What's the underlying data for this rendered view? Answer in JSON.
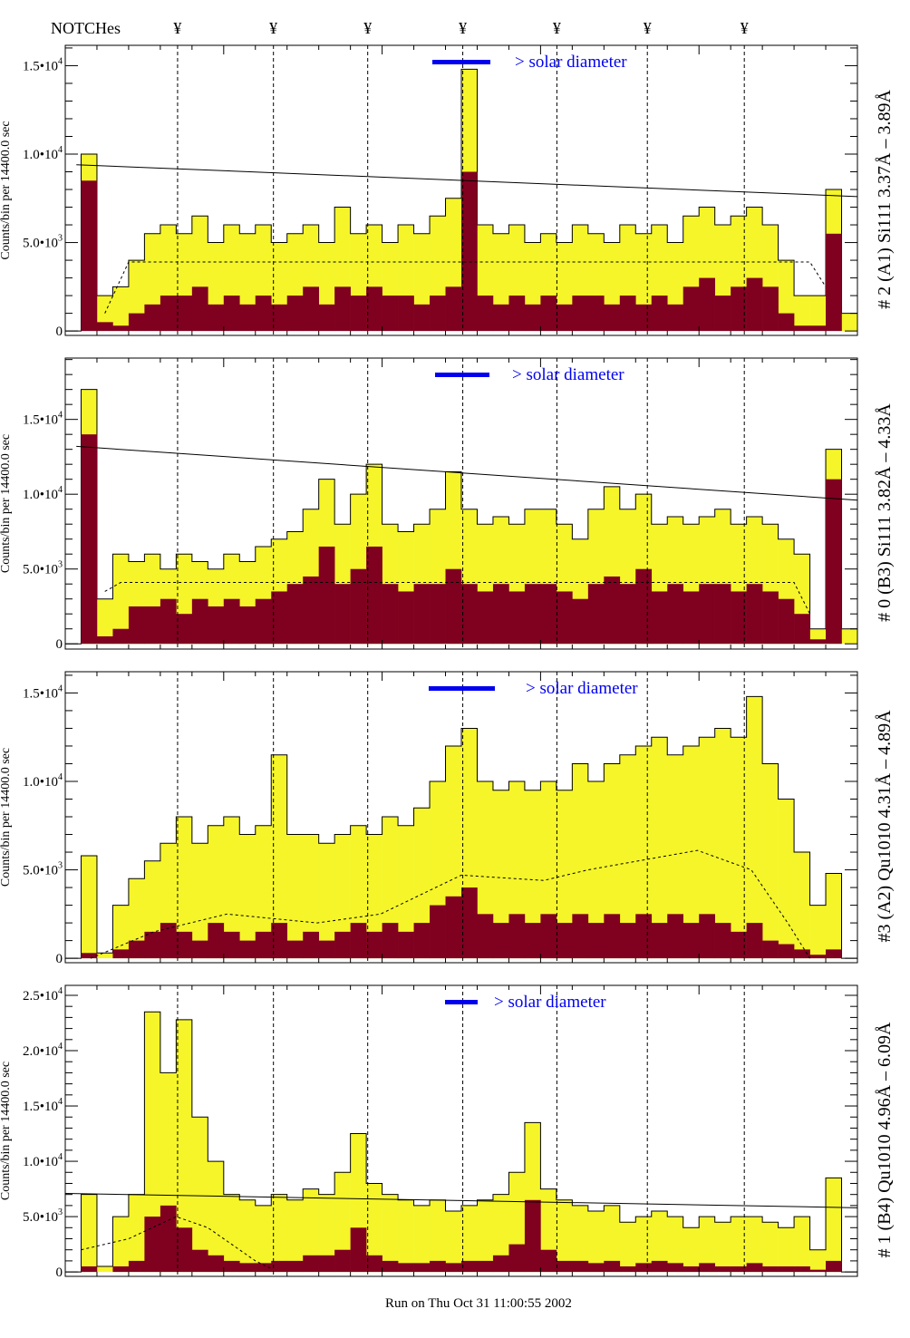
{
  "chart_data": [
    {
      "type": "bar",
      "panel_label": "# 2 (A1) Si111  3.37Å – 3.89Å",
      "ylabel": "Counts/bin per   14400.0 sec",
      "ylim": [
        -250,
        16150
      ],
      "yticks": [
        {
          "value": 0,
          "mantissa": "0",
          "exp": ""
        },
        {
          "value": 5000,
          "mantissa": "5.0•10",
          "exp": "3"
        },
        {
          "value": 10000,
          "mantissa": "1.0•10",
          "exp": "4"
        },
        {
          "value": 15000,
          "mantissa": "1.5•10",
          "exp": "4"
        }
      ],
      "solar_label": "> solar diameter",
      "series": [
        {
          "color": "#f5f52a",
          "values": [
            0,
            10000,
            2000,
            2500,
            4000,
            5500,
            6000,
            5500,
            6500,
            5000,
            6000,
            5500,
            6000,
            5000,
            5500,
            6000,
            5000,
            7000,
            5500,
            6000,
            5000,
            6000,
            5500,
            6500,
            7500,
            14800,
            6000,
            5500,
            6000,
            5000,
            5500,
            5000,
            6000,
            5500,
            5000,
            6000,
            5500,
            6000,
            5000,
            6500,
            7000,
            6000,
            6500,
            7000,
            6000,
            4000,
            2000,
            2000,
            8000,
            1000
          ]
        },
        {
          "color": "#800020",
          "values": [
            0,
            8500,
            500,
            300,
            1000,
            1500,
            2000,
            2000,
            2500,
            1500,
            2000,
            1500,
            2000,
            1500,
            2000,
            2500,
            1500,
            2500,
            2000,
            2500,
            2000,
            2000,
            1500,
            2000,
            2500,
            9000,
            2000,
            1500,
            2000,
            1500,
            2000,
            1500,
            2000,
            2000,
            1500,
            2000,
            1500,
            2000,
            1500,
            2500,
            3000,
            2000,
            2500,
            3000,
            2500,
            1000,
            300,
            300,
            5500,
            0
          ]
        }
      ],
      "dashed_line": [
        [
          2.5,
          1000
        ],
        [
          4,
          3900
        ],
        [
          47,
          3900
        ],
        [
          48,
          2500
        ]
      ],
      "solid_line": [
        [
          0.7,
          9400
        ],
        [
          50,
          7600
        ]
      ]
    },
    {
      "type": "bar",
      "panel_label": "# 0 (B3) Si111  3.82Å – 4.33Å",
      "ylabel": "Counts/bin per   14400.0 sec",
      "ylim": [
        -350,
        19100
      ],
      "yticks": [
        {
          "value": 0,
          "mantissa": "0",
          "exp": ""
        },
        {
          "value": 5000,
          "mantissa": "5.0•10",
          "exp": "3"
        },
        {
          "value": 10000,
          "mantissa": "1.0•10",
          "exp": "4"
        },
        {
          "value": 15000,
          "mantissa": "1.5•10",
          "exp": "4"
        }
      ],
      "solar_label": "> solar diameter",
      "series": [
        {
          "color": "#f5f52a",
          "values": [
            0,
            17000,
            3000,
            6000,
            5500,
            6000,
            5000,
            6000,
            5500,
            5000,
            6000,
            5500,
            6500,
            7000,
            7500,
            9000,
            11000,
            8000,
            10000,
            12000,
            8000,
            7500,
            8000,
            9000,
            11500,
            9000,
            8000,
            8500,
            8000,
            9000,
            9000,
            8000,
            7000,
            9000,
            10500,
            9000,
            10000,
            8000,
            8500,
            8000,
            8500,
            9000,
            8000,
            8500,
            8000,
            7000,
            6000,
            1000,
            13000,
            1000
          ]
        },
        {
          "color": "#800020",
          "values": [
            0,
            14000,
            500,
            1000,
            2500,
            2500,
            3000,
            2000,
            3000,
            2500,
            3000,
            2500,
            3000,
            3500,
            4000,
            4500,
            6500,
            4000,
            5000,
            6500,
            4000,
            3500,
            4000,
            4000,
            5000,
            4000,
            3500,
            4000,
            3500,
            4000,
            4000,
            3500,
            3000,
            4000,
            4500,
            4000,
            5000,
            3500,
            4000,
            3500,
            4000,
            4000,
            3500,
            4000,
            3500,
            3000,
            2000,
            300,
            11000,
            0
          ]
        }
      ],
      "dashed_line": [
        [
          2.5,
          3500
        ],
        [
          3.5,
          4100
        ],
        [
          46,
          4100
        ],
        [
          47,
          2000
        ]
      ],
      "solid_line": [
        [
          0.7,
          13200
        ],
        [
          50,
          9600
        ]
      ]
    },
    {
      "type": "bar",
      "panel_label": "#3 (A2) Qu1010  4.31Å – 4.89Å",
      "ylabel": "Counts/bin per   14400.0 sec",
      "ylim": [
        -250,
        16200
      ],
      "yticks": [
        {
          "value": 0,
          "mantissa": "0",
          "exp": ""
        },
        {
          "value": 5000,
          "mantissa": "5.0•10",
          "exp": "3"
        },
        {
          "value": 10000,
          "mantissa": "1.0•10",
          "exp": "4"
        },
        {
          "value": 15000,
          "mantissa": "1.5•10",
          "exp": "4"
        }
      ],
      "solar_label": "> solar diameter",
      "series": [
        {
          "color": "#f5f52a",
          "values": [
            0,
            5800,
            300,
            3000,
            4500,
            5500,
            6500,
            8000,
            6500,
            7500,
            8000,
            7000,
            7500,
            11500,
            7000,
            7000,
            6500,
            7000,
            7500,
            7000,
            8000,
            7500,
            8500,
            10000,
            12000,
            13000,
            10000,
            9500,
            10000,
            9500,
            10000,
            9500,
            11000,
            10000,
            11000,
            11500,
            12000,
            12500,
            11500,
            12000,
            12500,
            13000,
            12500,
            14800,
            11000,
            9000,
            6000,
            3000,
            4800,
            0
          ]
        },
        {
          "color": "#800020",
          "values": [
            0,
            300,
            0,
            500,
            1000,
            1500,
            2000,
            1500,
            1000,
            2000,
            1500,
            1000,
            1500,
            2000,
            1000,
            1500,
            1000,
            1500,
            2000,
            1500,
            2000,
            1500,
            2000,
            3000,
            3500,
            4000,
            2500,
            2000,
            2500,
            2000,
            2500,
            2000,
            2500,
            2000,
            2500,
            2000,
            2500,
            2000,
            2500,
            2000,
            2500,
            2000,
            1500,
            2000,
            1000,
            800,
            500,
            200,
            500,
            0
          ]
        }
      ],
      "dashed_line": [
        [
          1.6,
          0
        ],
        [
          5.6,
          1500
        ],
        [
          10.2,
          2500
        ],
        [
          15.9,
          2000
        ],
        [
          19.9,
          2500
        ],
        [
          25,
          4700
        ],
        [
          30.2,
          4400
        ],
        [
          33,
          5000
        ],
        [
          39.9,
          6100
        ],
        [
          43.3,
          5000
        ],
        [
          45.6,
          2000
        ],
        [
          47,
          0
        ]
      ],
      "solid_line": []
    },
    {
      "type": "bar",
      "panel_label": "# 1 (B4) Qu1010 4.96Å – 6.09Å",
      "ylabel": "Counts/bin per   14400.0 sec",
      "ylim": [
        -400,
        25900
      ],
      "yticks": [
        {
          "value": 0,
          "mantissa": "0",
          "exp": ""
        },
        {
          "value": 5000,
          "mantissa": "5.0•10",
          "exp": "3"
        },
        {
          "value": 10000,
          "mantissa": "1.0•10",
          "exp": "4"
        },
        {
          "value": 15000,
          "mantissa": "1.5•10",
          "exp": "4"
        },
        {
          "value": 20000,
          "mantissa": "2.0•10",
          "exp": "4"
        },
        {
          "value": 25000,
          "mantissa": "2.5•10",
          "exp": "4"
        }
      ],
      "solar_label": "> solar diameter",
      "series": [
        {
          "color": "#f5f52a",
          "values": [
            0,
            7000,
            500,
            5000,
            7000,
            23500,
            18000,
            22800,
            14000,
            10000,
            7000,
            6500,
            6000,
            7000,
            6500,
            7500,
            7000,
            9000,
            12500,
            8000,
            7000,
            6500,
            6000,
            6500,
            5500,
            6000,
            6500,
            7000,
            9000,
            13500,
            7500,
            6500,
            6000,
            5500,
            6000,
            4500,
            5000,
            5500,
            5000,
            4000,
            5000,
            4500,
            5000,
            5000,
            4500,
            4000,
            5000,
            2000,
            8500,
            0
          ]
        },
        {
          "color": "#800020",
          "values": [
            0,
            500,
            0,
            500,
            1000,
            5000,
            6000,
            4000,
            2000,
            1500,
            1000,
            800,
            800,
            1000,
            1000,
            1500,
            1500,
            2000,
            4000,
            1500,
            1000,
            800,
            800,
            1000,
            800,
            1000,
            1000,
            1500,
            2500,
            6500,
            2000,
            1000,
            1000,
            800,
            1000,
            500,
            800,
            1000,
            800,
            500,
            800,
            500,
            500,
            800,
            500,
            500,
            500,
            200,
            1000,
            0
          ]
        }
      ],
      "dashed_line": [
        [
          1,
          2000
        ],
        [
          4,
          3000
        ],
        [
          7,
          5000
        ],
        [
          9,
          4000
        ],
        [
          12,
          1000
        ],
        [
          13,
          300
        ]
      ],
      "solid_line": [
        [
          0,
          7100
        ],
        [
          50,
          5800
        ]
      ]
    }
  ],
  "header": {
    "notches_label": "NOTCHes",
    "notch_symbol": "¥",
    "notch_positions": [
      7.09,
      13.14,
      19.09,
      25.09,
      31.03,
      36.74,
      42.86
    ]
  },
  "footer": {
    "run_on": "Run on Thu Oct 31 11:00:55 2002"
  },
  "colors": {
    "total": "#f5f52a",
    "subset": "#800020",
    "solar": "#0000ee"
  }
}
